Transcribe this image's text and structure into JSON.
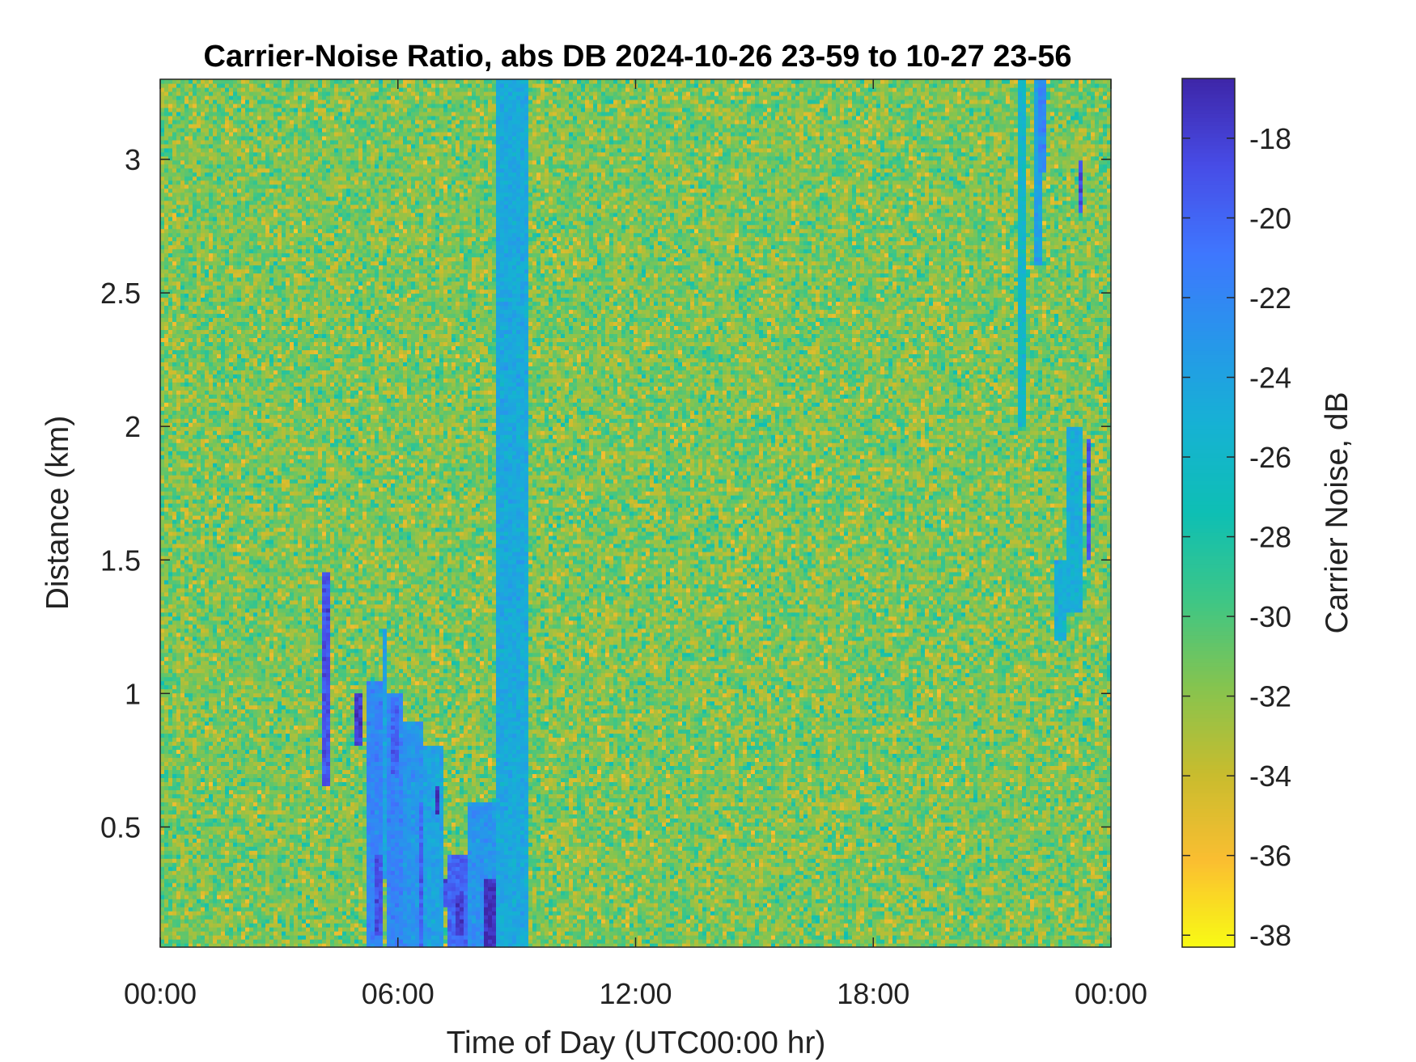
{
  "chart_data": {
    "type": "heatmap",
    "title": "Carrier-Noise Ratio, abs DB 2024-10-26 23-59 to 10-27 23-56",
    "xlabel": "Time of Day (UTC00:00 hr)",
    "ylabel": "Distance (km)",
    "x_tick_labels": [
      "00:00",
      "06:00",
      "12:00",
      "18:00",
      "00:00"
    ],
    "x_ticks_hours": [
      0,
      6,
      12,
      18,
      24
    ],
    "xlim_hours": [
      0,
      24
    ],
    "y_tick_labels": [
      "0.5",
      "1",
      "1.5",
      "2",
      "2.5",
      "3"
    ],
    "y_ticks": [
      0.5,
      1,
      1.5,
      2,
      2.5,
      3
    ],
    "ylim": [
      0.05,
      3.3
    ],
    "colorbar": {
      "label": "Carrier Noise, dB",
      "tick_labels": [
        "-18",
        "-20",
        "-22",
        "-24",
        "-26",
        "-28",
        "-30",
        "-32",
        "-34",
        "-36",
        "-38"
      ],
      "ticks": [
        -18,
        -20,
        -22,
        -24,
        -26,
        -28,
        -30,
        -32,
        -34,
        -36,
        -38
      ],
      "range": [
        -38.3,
        -16.5
      ],
      "colormap": "parula",
      "reversed": true
    },
    "background": {
      "mean_db": -31.5,
      "spread_db": 2.5
    },
    "features": [
      {
        "description": "persistent strong-signal band",
        "t_start": 8.5,
        "t_end": 9.3,
        "d_start": 0.05,
        "d_end": 3.3,
        "value_db": -24.5
      },
      {
        "t_start": 4.1,
        "t_end": 4.3,
        "d_start": 0.65,
        "d_end": 1.45,
        "value_db": -19
      },
      {
        "t_start": 4.95,
        "t_end": 5.1,
        "d_start": 0.8,
        "d_end": 1.0,
        "value_db": -18
      },
      {
        "t_start": 5.2,
        "t_end": 5.6,
        "d_start": 0.05,
        "d_end": 1.05,
        "value_db": -22
      },
      {
        "t_start": 5.4,
        "t_end": 5.6,
        "d_start": 0.1,
        "d_end": 0.4,
        "value_db": -19
      },
      {
        "t_start": 5.6,
        "t_end": 5.75,
        "d_start": 0.3,
        "d_end": 1.25,
        "value_db": -24
      },
      {
        "t_start": 5.75,
        "t_end": 6.1,
        "d_start": 0.05,
        "d_end": 1.0,
        "value_db": -22
      },
      {
        "t_start": 5.8,
        "t_end": 6.0,
        "d_start": 0.7,
        "d_end": 0.95,
        "value_db": -20
      },
      {
        "t_start": 6.1,
        "t_end": 6.6,
        "d_start": 0.05,
        "d_end": 0.9,
        "value_db": -23
      },
      {
        "t_start": 6.5,
        "t_end": 6.65,
        "d_start": 0.05,
        "d_end": 0.6,
        "value_db": -20
      },
      {
        "t_start": 6.6,
        "t_end": 7.1,
        "d_start": 0.05,
        "d_end": 0.8,
        "value_db": -24
      },
      {
        "t_start": 6.9,
        "t_end": 7.0,
        "d_start": 0.55,
        "d_end": 0.65,
        "value_db": -17
      },
      {
        "t_start": 7.1,
        "t_end": 7.3,
        "d_start": 0.2,
        "d_end": 0.3,
        "value_db": -19
      },
      {
        "t_start": 7.2,
        "t_end": 7.8,
        "d_start": 0.05,
        "d_end": 0.4,
        "value_db": -20
      },
      {
        "t_start": 7.5,
        "t_end": 7.7,
        "d_start": 0.1,
        "d_end": 0.25,
        "value_db": -18
      },
      {
        "t_start": 7.8,
        "t_end": 8.5,
        "d_start": 0.05,
        "d_end": 0.6,
        "value_db": -23
      },
      {
        "t_start": 8.15,
        "t_end": 8.5,
        "d_start": 0.05,
        "d_end": 0.3,
        "value_db": -17
      },
      {
        "t_start": 21.7,
        "t_end": 21.9,
        "d_start": 2.0,
        "d_end": 3.3,
        "value_db": -26
      },
      {
        "t_start": 22.1,
        "t_end": 22.3,
        "d_start": 2.6,
        "d_end": 3.3,
        "value_db": -24
      },
      {
        "t_start": 22.2,
        "t_end": 22.35,
        "d_start": 2.95,
        "d_end": 3.3,
        "value_db": -22
      },
      {
        "t_start": 23.2,
        "t_end": 23.3,
        "d_start": 2.8,
        "d_end": 3.0,
        "value_db": -19
      },
      {
        "t_start": 22.6,
        "t_end": 22.9,
        "d_start": 1.2,
        "d_end": 1.5,
        "value_db": -25
      },
      {
        "t_start": 22.9,
        "t_end": 23.3,
        "d_start": 1.3,
        "d_end": 2.0,
        "value_db": -25
      },
      {
        "t_start": 23.4,
        "t_end": 23.5,
        "d_start": 1.5,
        "d_end": 1.95,
        "value_db": -19
      }
    ]
  }
}
